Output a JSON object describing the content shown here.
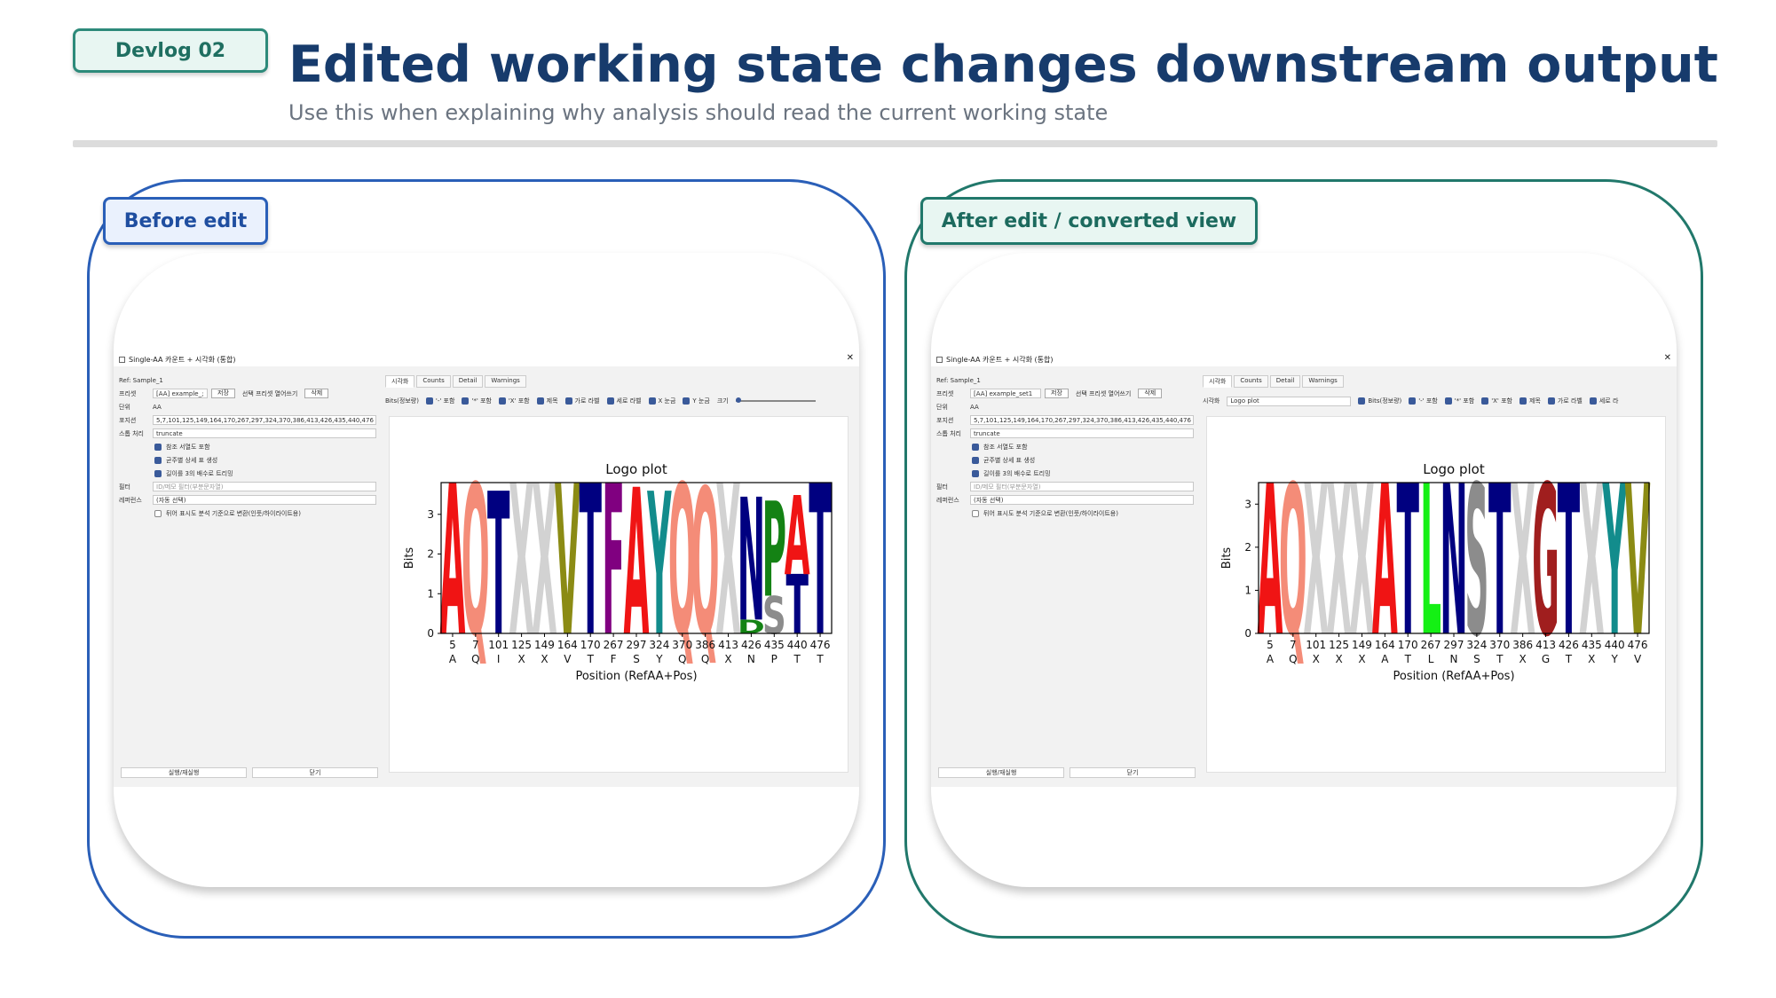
{
  "header": {
    "tag": "Devlog 02",
    "title": "Edited working state changes downstream output",
    "subtitle": "Use this when explaining why analysis should read the current working state"
  },
  "panels": [
    {
      "label": "Before edit",
      "window_title": "Single-AA 카운트 + 시각화 (통합)",
      "ref": "Ref: Sample_1",
      "preset_key": "프리셋",
      "preset_value": "[AA] example_;",
      "save_btn": "저장",
      "open_btn": "선택 프리셋 열어쓰기",
      "delete_btn": "삭제",
      "unit_key": "단위",
      "unit_value": "AA",
      "positions_key": "포지션",
      "positions_value": "5,7,101,125,149,164,170,267,297,324,370,386,413,426,435,440,476",
      "stop_key": "스톱 처리",
      "stop_value": "truncate",
      "checks": [
        "참조 서열도 포함",
        "균주별 상세 표 생성",
        "길이를 3의 배수로 트리밍"
      ],
      "filter_key": "필터",
      "filter_placeholder": "ID/메모 필터(부분문자열)",
      "ref_key": "레퍼런스",
      "ref_value": "(자동 선택)",
      "convert_check": "뒤어 표시도 분석 기준으로 변환(인풋/하이라이트용)",
      "run_btn": "실행/재실행",
      "close_btn": "닫기",
      "tabs": [
        "시각화",
        "Counts",
        "Detail",
        "Warnings"
      ],
      "options": [
        "Bits(정보량)",
        "'-' 포함",
        "'*' 포함",
        "'X' 포함",
        "제목",
        "가로 라벨",
        "세로 라벨",
        "X 눈금",
        "Y 눈금",
        "크기"
      ],
      "chart_data": {
        "type": "bar",
        "title": "Logo plot",
        "xlabel": "Position (RefAA+Pos)",
        "ylabel": "Bits",
        "ylim": [
          0,
          3.8
        ],
        "yticks": [
          0,
          1,
          2,
          3
        ],
        "positions": [
          "5",
          "7",
          "101",
          "125",
          "149",
          "164",
          "170",
          "267",
          "297",
          "324",
          "370",
          "386",
          "413",
          "426",
          "435",
          "440",
          "476"
        ],
        "ref_aa": [
          "A",
          "Q",
          "I",
          "X",
          "X",
          "V",
          "T",
          "F",
          "S",
          "Y",
          "Q",
          "Q",
          "X",
          "N",
          "P",
          "T",
          "T"
        ],
        "columns": [
          [
            {
              "aa": "A",
              "bits": 3.8,
              "color": "#f01414"
            }
          ],
          [
            {
              "aa": "Q",
              "bits": 3.8,
              "color": "#f48c78"
            }
          ],
          [
            {
              "aa": "T",
              "bits": 3.6,
              "color": "#000080"
            }
          ],
          [
            {
              "aa": "X",
              "bits": 3.8,
              "color": "#d2d2d2"
            }
          ],
          [
            {
              "aa": "X",
              "bits": 3.8,
              "color": "#d2d2d2"
            }
          ],
          [
            {
              "aa": "V",
              "bits": 3.8,
              "color": "#8b8b14"
            }
          ],
          [
            {
              "aa": "T",
              "bits": 3.8,
              "color": "#000080"
            }
          ],
          [
            {
              "aa": "F",
              "bits": 3.8,
              "color": "#800080"
            }
          ],
          [
            {
              "aa": "A",
              "bits": 3.7,
              "color": "#f01414"
            }
          ],
          [
            {
              "aa": "Y",
              "bits": 3.6,
              "color": "#128c8c"
            }
          ],
          [
            {
              "aa": "Q",
              "bits": 3.8,
              "color": "#f48c78"
            }
          ],
          [
            {
              "aa": "Q",
              "bits": 3.7,
              "color": "#f48c78"
            }
          ],
          [
            {
              "aa": "X",
              "bits": 3.8,
              "color": "#d2d2d2"
            }
          ],
          [
            {
              "aa": "D",
              "bits": 0.35,
              "color": "#148214"
            },
            {
              "aa": "N",
              "bits": 3.1,
              "color": "#000080"
            }
          ],
          [
            {
              "aa": "S",
              "bits": 0.95,
              "color": "#8c8c8c"
            },
            {
              "aa": "P",
              "bits": 2.4,
              "color": "#148214"
            }
          ],
          [
            {
              "aa": "T",
              "bits": 1.5,
              "color": "#000080"
            },
            {
              "aa": "A",
              "bits": 2.0,
              "color": "#f01414"
            }
          ],
          [
            {
              "aa": "T",
              "bits": 3.8,
              "color": "#000080"
            }
          ]
        ]
      }
    },
    {
      "label": "After edit / converted view",
      "window_title": "Single-AA 카운트 + 시각화 (통합)",
      "ref": "Ref: Sample_1",
      "preset_key": "프리셋",
      "preset_value": "[AA] example_set1",
      "save_btn": "저장",
      "open_btn": "선택 프리셋 열어쓰기",
      "delete_btn": "삭제",
      "unit_key": "단위",
      "unit_value": "AA",
      "positions_key": "포지션",
      "positions_value": "5,7,101,125,149,164,170,267,297,324,370,386,413,426,435,440,476",
      "stop_key": "스톱 처리",
      "stop_value": "truncate",
      "checks": [
        "참조 서열도 포함",
        "균주별 상세 표 생성",
        "길이를 3의 배수로 트리밍"
      ],
      "filter_key": "필터",
      "filter_placeholder": "ID/메모 필터(부분문자열)",
      "ref_key": "레퍼런스",
      "ref_value": "(자동 선택)",
      "convert_check": "뒤어 표시도 분석 기준으로 변환(인풋/하이라이트용)",
      "run_btn": "실행/재실행",
      "close_btn": "닫기",
      "tabs": [
        "시각화",
        "Counts",
        "Detail",
        "Warnings"
      ],
      "viz_key": "시각화",
      "viz_value": "Logo plot",
      "options": [
        "Bits(정보량)",
        "'-' 포함",
        "'*' 포함",
        "'X' 포함",
        "제목",
        "가로 라벨",
        "세로 라"
      ],
      "chart_data": {
        "type": "bar",
        "title": "Logo plot",
        "xlabel": "Position (RefAA+Pos)",
        "ylabel": "Bits",
        "ylim": [
          0,
          3.5
        ],
        "yticks": [
          0,
          1,
          2,
          3
        ],
        "positions": [
          "5",
          "7",
          "101",
          "125",
          "149",
          "164",
          "170",
          "267",
          "297",
          "324",
          "370",
          "386",
          "413",
          "426",
          "435",
          "440",
          "476"
        ],
        "ref_aa": [
          "A",
          "Q",
          "X",
          "X",
          "X",
          "A",
          "T",
          "L",
          "N",
          "S",
          "T",
          "X",
          "G",
          "T",
          "X",
          "Y",
          "V"
        ],
        "columns": [
          [
            {
              "aa": "A",
              "bits": 3.5,
              "color": "#f01414"
            }
          ],
          [
            {
              "aa": "Q",
              "bits": 3.5,
              "color": "#f48c78"
            }
          ],
          [
            {
              "aa": "X",
              "bits": 3.5,
              "color": "#d2d2d2"
            }
          ],
          [
            {
              "aa": "X",
              "bits": 3.5,
              "color": "#d2d2d2"
            }
          ],
          [
            {
              "aa": "X",
              "bits": 3.5,
              "color": "#d2d2d2"
            }
          ],
          [
            {
              "aa": "A",
              "bits": 3.5,
              "color": "#f01414"
            }
          ],
          [
            {
              "aa": "T",
              "bits": 3.5,
              "color": "#000080"
            }
          ],
          [
            {
              "aa": "L",
              "bits": 3.5,
              "color": "#14f014"
            }
          ],
          [
            {
              "aa": "N",
              "bits": 3.5,
              "color": "#000080"
            }
          ],
          [
            {
              "aa": "S",
              "bits": 3.5,
              "color": "#8c8c8c"
            }
          ],
          [
            {
              "aa": "T",
              "bits": 3.5,
              "color": "#000080"
            }
          ],
          [
            {
              "aa": "X",
              "bits": 3.5,
              "color": "#d2d2d2"
            }
          ],
          [
            {
              "aa": "G",
              "bits": 3.5,
              "color": "#a01e1e"
            }
          ],
          [
            {
              "aa": "T",
              "bits": 3.5,
              "color": "#000080"
            }
          ],
          [
            {
              "aa": "X",
              "bits": 3.5,
              "color": "#d2d2d2"
            }
          ],
          [
            {
              "aa": "Y",
              "bits": 3.5,
              "color": "#128c8c"
            }
          ],
          [
            {
              "aa": "V",
              "bits": 3.5,
              "color": "#8b8b14"
            }
          ]
        ]
      }
    }
  ]
}
